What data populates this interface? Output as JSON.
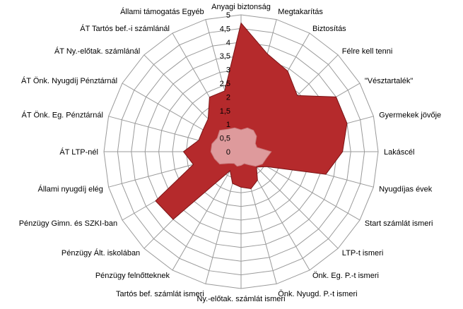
{
  "chart_data": {
    "type": "radar",
    "title": "",
    "categories": [
      "Anyagi biztonság",
      "Megtakarítás",
      "Biztosítás",
      "Félre kell tenni",
      "\"Vésztartalék\"",
      "Gyermekek jövője",
      "Lakáscél",
      "Nyugdíjas évek",
      "Start számlát  ismeri",
      "LTP-t ismeri",
      "Önk. Eg. P.-t ismeri",
      "Önk. Nyugd.  P.-t ismeri",
      "Ny.-előtak. számlát  ismeri",
      "Tartós bef. számlát  ismeri",
      "Pénzügy felnőtteknek",
      "Pénzügy Ált.  iskolában",
      "Pénzügy Gimn.  és SZKI-ban",
      "Állami nyugdíj elég",
      "ÁT  LTP-nél",
      "ÁT Önk. Eg.  Pénztárnál",
      "ÁT Önk. Nyugdíj  Pénztárnál",
      "ÁT Ny.-előtak.  számlánál",
      "ÁT Tartós bef.-i  számlánál",
      "Állami támogatás  Egyéb"
    ],
    "series": [
      {
        "color": "#b52a2c",
        "values": [
          4.7,
          3.7,
          3.4,
          2.9,
          4.0,
          4.0,
          3.7,
          3.2,
          1.1,
          0.8,
          1.2,
          1.4,
          1.3,
          1.2,
          0.8,
          3.5,
          3.6,
          1.8,
          2.1,
          1.6,
          1.6,
          1.7,
          2.3,
          2.3
        ]
      },
      {
        "color": "#e0a0a2",
        "values": [
          0.8,
          0.9,
          0.9,
          0.8,
          0.6,
          0.6,
          1.1,
          0.95,
          0.9,
          0.75,
          0.55,
          0.45,
          0.5,
          0.55,
          0.5,
          0.6,
          0.9,
          1.0,
          1.1,
          1.1,
          1.0,
          1.1,
          0.95,
          0.9
        ]
      }
    ],
    "rlim": [
      0,
      5
    ],
    "ticks": [
      "0",
      "0,5",
      "1",
      "1,5",
      "2",
      "2,5",
      "3",
      "3,5",
      "4",
      "4,5",
      "5"
    ],
    "grid": true,
    "legend": "none"
  }
}
